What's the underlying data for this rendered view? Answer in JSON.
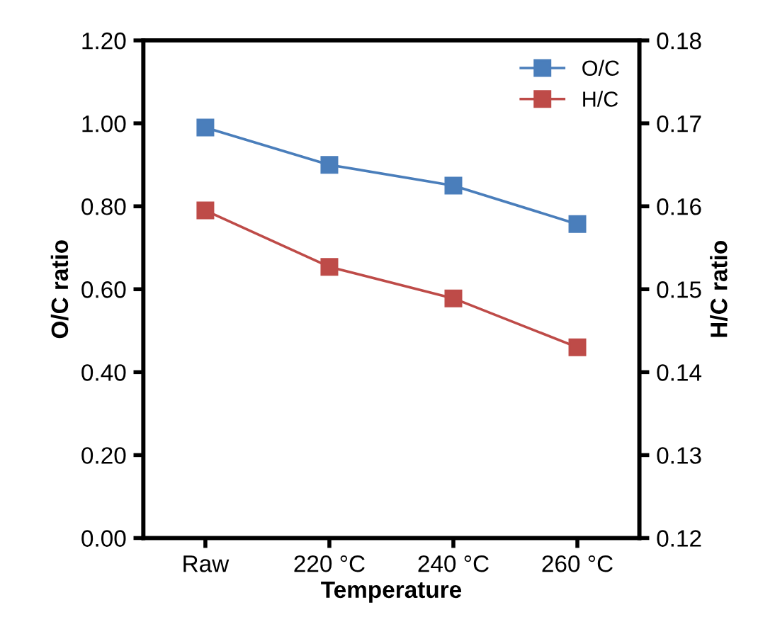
{
  "chart_data": {
    "type": "line",
    "xlabel": "Temperature",
    "ylabel": "O/C ratio",
    "y2label": "H/C ratio",
    "categories": [
      "Raw",
      "220 °C",
      "240 °C",
      "260 °C"
    ],
    "series": [
      {
        "name": "O/C",
        "color": "#4a7ebb",
        "values": [
          0.99,
          0.9,
          0.85,
          0.757
        ]
      },
      {
        "name": "H/C",
        "color": "#be4b48",
        "axis": "y2",
        "values": [
          0.1595,
          0.1527,
          0.1489,
          0.143
        ]
      }
    ],
    "ylim": [
      0,
      1.2
    ],
    "yticks": [
      {
        "value": 0,
        "label": "0.00"
      },
      {
        "value": 0.2,
        "label": "0.20"
      },
      {
        "value": 0.4,
        "label": "0.40"
      },
      {
        "value": 0.6,
        "label": "0.60"
      },
      {
        "value": 0.8,
        "label": "0.80"
      },
      {
        "value": 1.0,
        "label": "1.00"
      },
      {
        "value": 1.2,
        "label": "1.20"
      }
    ],
    "y2lim": [
      0.12,
      0.18
    ],
    "y2ticks": [
      0.12,
      0.13,
      0.14,
      0.15,
      0.16,
      0.17,
      0.18
    ],
    "marker": "square",
    "legend": "top right",
    "grid": false
  }
}
